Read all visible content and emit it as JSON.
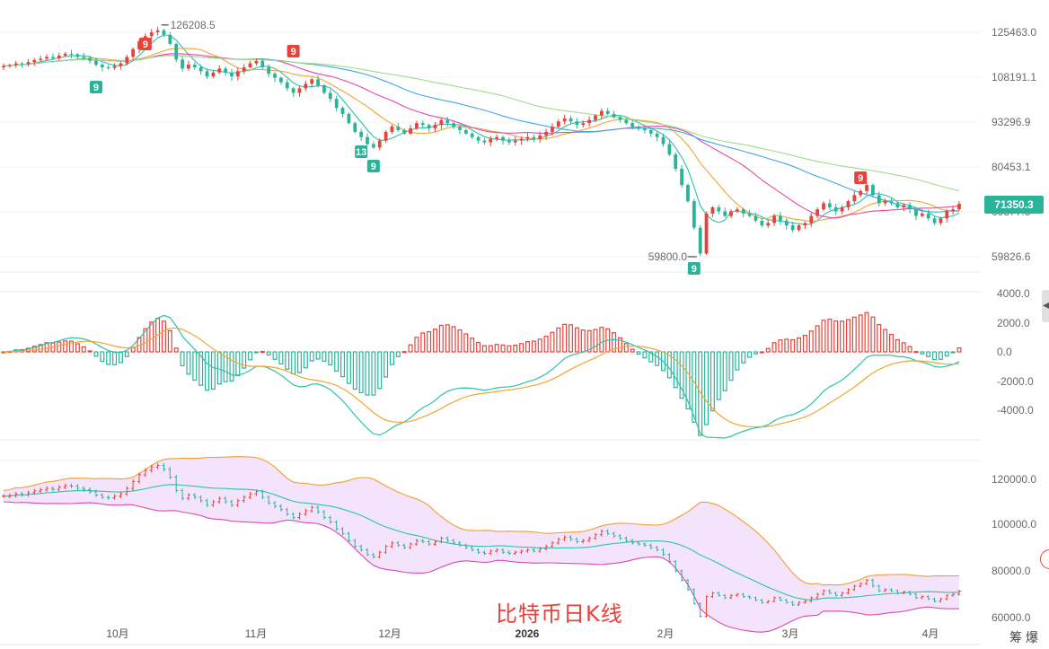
{
  "title": "比特币日K线",
  "current_price_label": "71350.3",
  "corner_text": "筹 爆",
  "colors": {
    "up": "#e8423a",
    "down": "#2bb39a",
    "ma1": "#2bc4a8",
    "ma2": "#f2a531",
    "ma3": "#e24aa8",
    "ma4": "#3fa7e6",
    "ma5": "#9fdc8a",
    "band_fill": "#f3e4fb",
    "band_upper": "#f39c34",
    "band_lower": "#d74bb3",
    "band_mid": "#2bc4a8",
    "macd_dif": "#2bc4a8",
    "macd_dea": "#f2a531"
  },
  "chart_data": [
    {
      "type": "candlestick",
      "panel": "price",
      "y_ticks": [
        125463.0,
        108191.1,
        93296.9,
        80453.1,
        69377.5,
        59826.6
      ],
      "y_tick_labels": [
        "125463.0",
        "108191.1",
        "93296.9",
        "80453.1",
        "69377.5",
        "59826.6"
      ],
      "annotations": {
        "high_label": "126208.5",
        "low_label": "59800.0",
        "nine_markers": [
          "9",
          "9",
          "9",
          "13",
          "9",
          "9",
          "9"
        ]
      },
      "close_path": [
        112500,
        112800,
        113500,
        113200,
        114000,
        114800,
        115300,
        116000,
        115500,
        116500,
        117200,
        117000,
        116000,
        115500,
        114500,
        113000,
        112000,
        111800,
        112500,
        113500,
        116000,
        119000,
        122000,
        124000,
        125500,
        126208,
        124500,
        121000,
        115000,
        111500,
        113000,
        112000,
        110500,
        108500,
        110000,
        111500,
        110000,
        108500,
        110500,
        112000,
        113500,
        114500,
        112000,
        109500,
        108000,
        106500,
        104500,
        103000,
        104500,
        106000,
        107500,
        105500,
        103000,
        101000,
        98000,
        96000,
        93000,
        90500,
        89000,
        87000,
        86000,
        88000,
        90500,
        92000,
        91000,
        90000,
        91500,
        93000,
        92500,
        91500,
        92500,
        94000,
        93000,
        92000,
        91000,
        90000,
        89000,
        88000,
        87500,
        88500,
        89000,
        88000,
        87500,
        88000,
        88500,
        89000,
        88500,
        89500,
        90500,
        92000,
        93500,
        94500,
        93500,
        92500,
        93000,
        94000,
        95500,
        97000,
        96000,
        95000,
        94000,
        93000,
        92000,
        91500,
        91000,
        90000,
        89000,
        87000,
        84000,
        80000,
        76000,
        72000,
        66000,
        60500,
        69000,
        70500,
        69500,
        68500,
        69500,
        70000,
        69000,
        68500,
        67500,
        66500,
        67000,
        68500,
        67500,
        66500,
        65500,
        66500,
        67000,
        68500,
        70000,
        71500,
        70500,
        69500,
        70500,
        72000,
        73500,
        74500,
        76000,
        73500,
        71500,
        72000,
        71500,
        70500,
        71000,
        70000,
        68500,
        69000,
        68000,
        67000,
        68000,
        69500,
        70000,
        71350
      ]
    },
    {
      "type": "bar",
      "panel": "macd",
      "y_ticks": [
        4000.0,
        2000.0,
        0.0,
        -2000.0,
        -4000.0
      ],
      "y_tick_labels": [
        "4000.0",
        "2000.0",
        "0.0",
        "-2000.0",
        "-4000.0"
      ]
    },
    {
      "type": "line",
      "panel": "bollinger",
      "y_ticks": [
        120000.0,
        100000.0,
        80000.0,
        60000.0
      ],
      "y_tick_labels": [
        "120000.0",
        "100000.0",
        "80000.0",
        "60000.0"
      ]
    }
  ],
  "x_axis": {
    "labels": [
      "10月",
      "11月",
      "12月",
      "2026",
      "2月",
      "3月",
      "4月"
    ],
    "bold_index": 3
  }
}
